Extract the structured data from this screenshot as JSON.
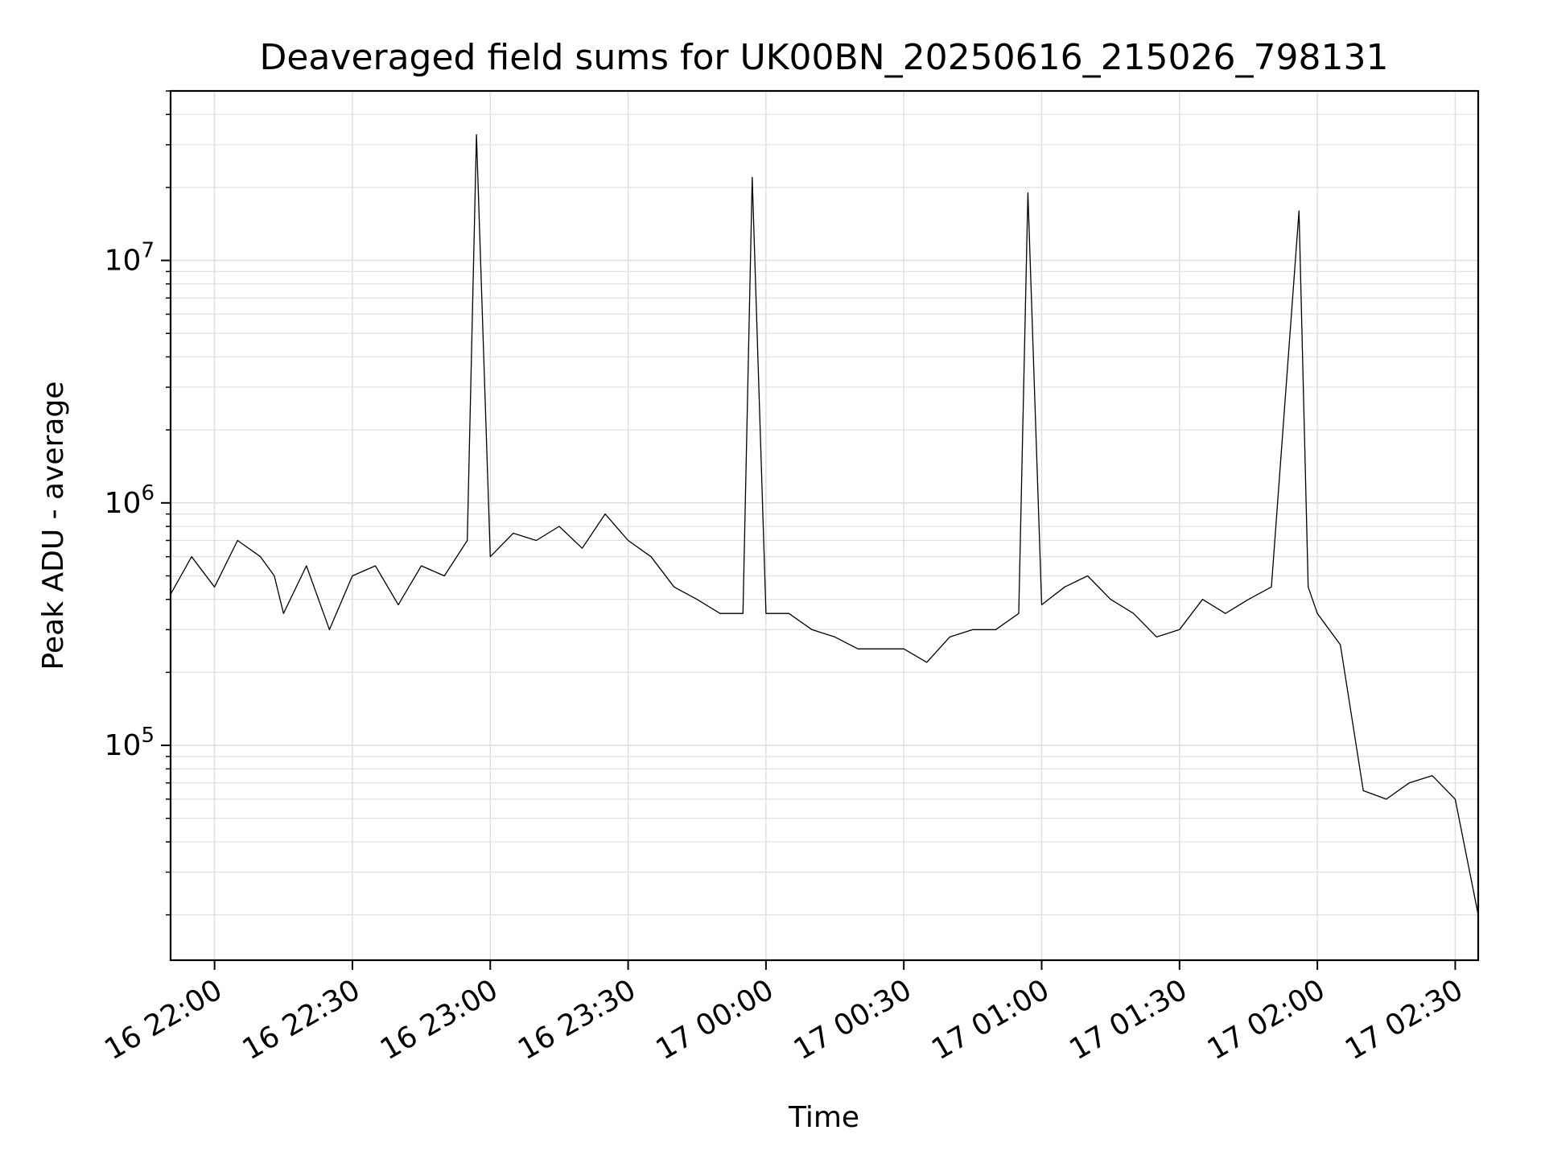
{
  "chart_data": {
    "type": "line",
    "title": "Deaveraged field sums for UK00BN_20250616_215026_798131",
    "xlabel": "Time",
    "ylabel": "Peak ADU - average",
    "y_scale": "log",
    "grid": true,
    "legend": "none",
    "line_color": "#000000",
    "grid_color": "#e0e0e0",
    "xlim": [
      "2025-06-16 21:50:26",
      "2025-06-17 02:35:00"
    ],
    "ylim": [
      13000,
      50000000
    ],
    "x_ticks": [
      {
        "t": "2025-06-16 22:00",
        "label": "16 22:00"
      },
      {
        "t": "2025-06-16 22:30",
        "label": "16 22:30"
      },
      {
        "t": "2025-06-16 23:00",
        "label": "16 23:00"
      },
      {
        "t": "2025-06-16 23:30",
        "label": "16 23:30"
      },
      {
        "t": "2025-06-17 00:00",
        "label": "17 00:00"
      },
      {
        "t": "2025-06-17 00:30",
        "label": "17 00:30"
      },
      {
        "t": "2025-06-17 01:00",
        "label": "17 01:00"
      },
      {
        "t": "2025-06-17 01:30",
        "label": "17 01:30"
      },
      {
        "t": "2025-06-17 02:00",
        "label": "17 02:00"
      },
      {
        "t": "2025-06-17 02:30",
        "label": "17 02:30"
      }
    ],
    "y_ticks": [
      {
        "value": 100000,
        "base": "10",
        "exp": "5"
      },
      {
        "value": 1000000,
        "base": "10",
        "exp": "6"
      },
      {
        "value": 10000000,
        "base": "10",
        "exp": "7"
      }
    ],
    "series": [
      {
        "x": [
          "2025-06-16 21:50:26",
          "2025-06-16 21:55",
          "2025-06-16 22:00",
          "2025-06-16 22:05",
          "2025-06-16 22:10",
          "2025-06-16 22:13",
          "2025-06-16 22:15",
          "2025-06-16 22:20",
          "2025-06-16 22:25",
          "2025-06-16 22:30",
          "2025-06-16 22:35",
          "2025-06-16 22:40",
          "2025-06-16 22:45",
          "2025-06-16 22:50",
          "2025-06-16 22:55",
          "2025-06-16 22:57",
          "2025-06-16 23:00",
          "2025-06-16 23:05",
          "2025-06-16 23:10",
          "2025-06-16 23:15",
          "2025-06-16 23:20",
          "2025-06-16 23:25",
          "2025-06-16 23:30",
          "2025-06-16 23:35",
          "2025-06-16 23:40",
          "2025-06-16 23:45",
          "2025-06-16 23:50",
          "2025-06-16 23:55",
          "2025-06-16 23:57",
          "2025-06-17 00:00",
          "2025-06-17 00:05",
          "2025-06-17 00:10",
          "2025-06-17 00:15",
          "2025-06-17 00:20",
          "2025-06-17 00:25",
          "2025-06-17 00:30",
          "2025-06-17 00:35",
          "2025-06-17 00:40",
          "2025-06-17 00:45",
          "2025-06-17 00:50",
          "2025-06-17 00:55",
          "2025-06-17 00:57",
          "2025-06-17 01:00",
          "2025-06-17 01:05",
          "2025-06-17 01:10",
          "2025-06-17 01:15",
          "2025-06-17 01:20",
          "2025-06-17 01:25",
          "2025-06-17 01:30",
          "2025-06-17 01:35",
          "2025-06-17 01:40",
          "2025-06-17 01:45",
          "2025-06-17 01:50",
          "2025-06-17 01:56",
          "2025-06-17 01:58",
          "2025-06-17 02:00",
          "2025-06-17 02:05",
          "2025-06-17 02:10",
          "2025-06-17 02:15",
          "2025-06-17 02:20",
          "2025-06-17 02:25",
          "2025-06-17 02:30",
          "2025-06-17 02:35"
        ],
        "values": [
          420000,
          600000,
          450000,
          700000,
          600000,
          500000,
          350000,
          550000,
          300000,
          500000,
          550000,
          380000,
          550000,
          500000,
          700000,
          33000000,
          600000,
          750000,
          700000,
          800000,
          650000,
          900000,
          700000,
          600000,
          450000,
          400000,
          350000,
          350000,
          22000000,
          350000,
          350000,
          300000,
          280000,
          250000,
          250000,
          250000,
          220000,
          280000,
          300000,
          300000,
          350000,
          19000000,
          380000,
          450000,
          500000,
          400000,
          350000,
          280000,
          300000,
          400000,
          350000,
          400000,
          450000,
          16000000,
          450000,
          350000,
          260000,
          65000,
          60000,
          70000,
          75000,
          60000,
          20000
        ]
      }
    ]
  }
}
